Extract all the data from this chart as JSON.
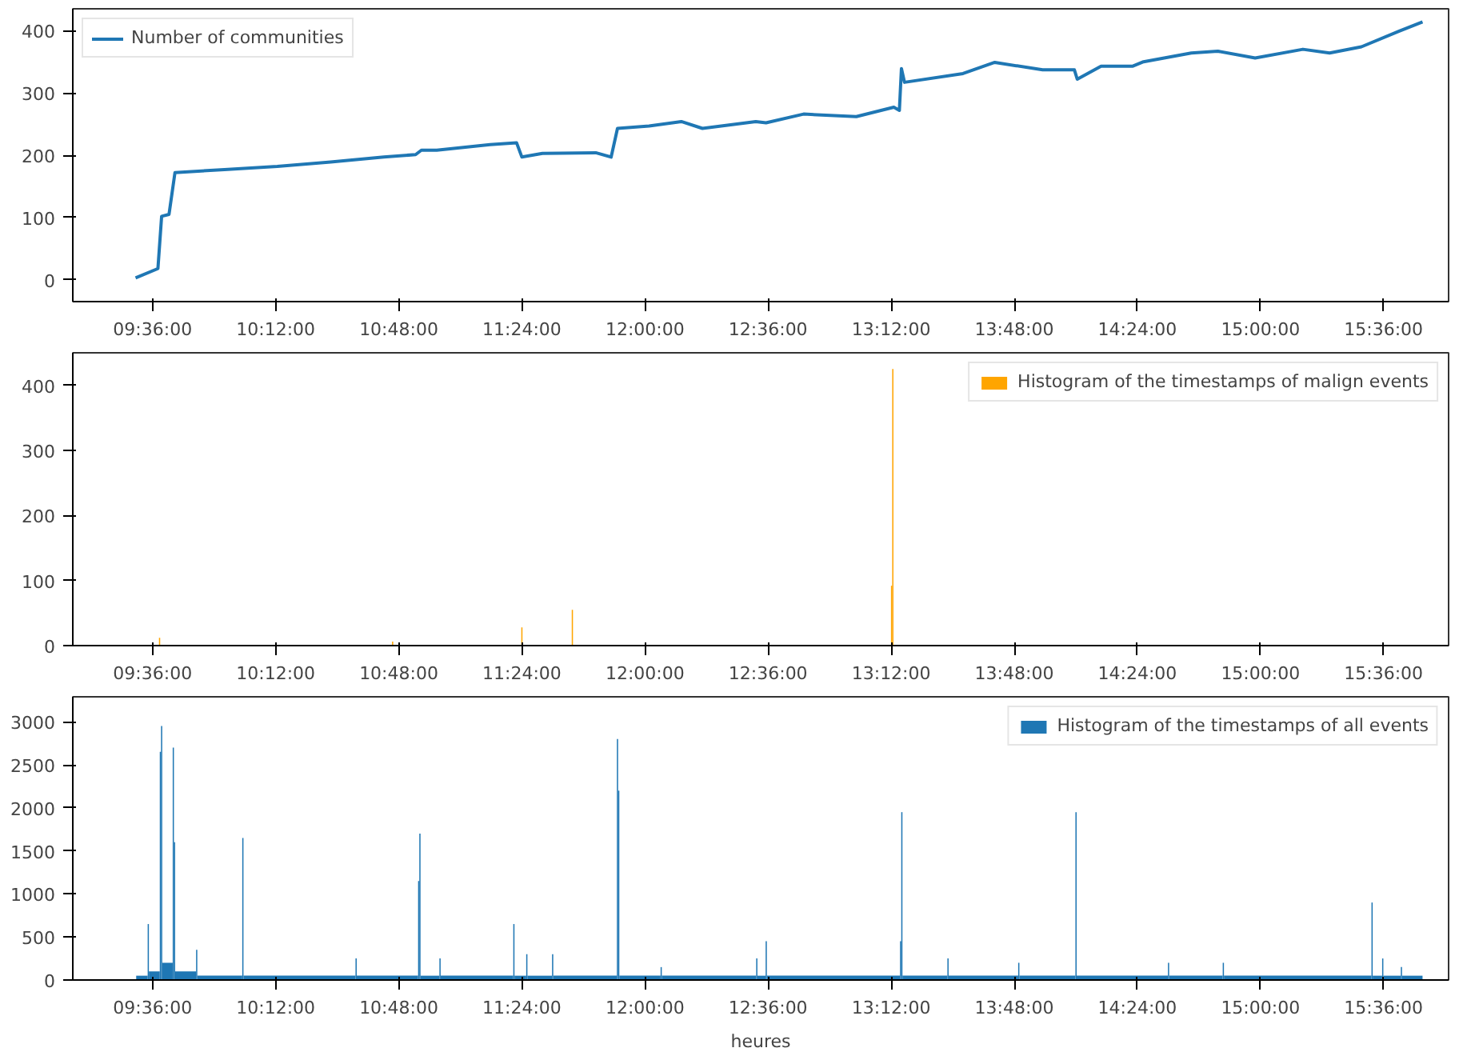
{
  "chart_data": [
    {
      "type": "line",
      "x": [
        9.517,
        9.626,
        9.644,
        9.68,
        9.709,
        9.95,
        10.208,
        10.468,
        10.727,
        10.882,
        10.91,
        10.985,
        11.245,
        11.374,
        11.4,
        11.5,
        11.76,
        11.835,
        11.866,
        12.02,
        12.177,
        12.28,
        12.54,
        12.59,
        12.773,
        13.03,
        13.213,
        13.24,
        13.25,
        13.265,
        13.55,
        13.705,
        13.938,
        14.093,
        14.107,
        14.223,
        14.378,
        14.43,
        14.663,
        14.792,
        14.974,
        15.207,
        15.337,
        15.492,
        15.674,
        15.79
      ],
      "series": [
        {
          "name": "Number of communities",
          "color": "#1f77b4",
          "values": [
            3,
            18,
            102,
            105,
            172,
            177,
            182,
            189,
            197,
            201,
            208,
            208,
            217,
            220,
            197,
            203,
            204,
            197,
            243,
            247,
            254,
            243,
            254,
            252,
            266,
            262,
            277,
            272,
            339,
            317,
            331,
            349,
            337,
            337,
            322,
            343,
            343,
            350,
            364,
            367,
            356,
            370,
            364,
            374,
            399,
            414
          ]
        }
      ],
      "xlim": [
        9.211,
        15.917
      ],
      "ylim": [
        -35,
        435
      ],
      "xticks": [
        {
          "value": 9.6,
          "label": "09:36:00"
        },
        {
          "value": 10.2,
          "label": "10:12:00"
        },
        {
          "value": 10.8,
          "label": "10:48:00"
        },
        {
          "value": 11.4,
          "label": "11:24:00"
        },
        {
          "value": 12.0,
          "label": "12:00:00"
        },
        {
          "value": 12.6,
          "label": "12:36:00"
        },
        {
          "value": 13.2,
          "label": "13:12:00"
        },
        {
          "value": 13.8,
          "label": "13:48:00"
        },
        {
          "value": 14.4,
          "label": "14:24:00"
        },
        {
          "value": 15.0,
          "label": "15:00:00"
        },
        {
          "value": 15.6,
          "label": "15:36:00"
        }
      ],
      "yticks": [
        0,
        100,
        200,
        300,
        400
      ],
      "legend": "top left"
    },
    {
      "type": "histogram",
      "bins": [
        9.631,
        9.637,
        10.767,
        10.773,
        11.397,
        11.403,
        11.643,
        11.649,
        13.199,
        13.205,
        13.211
      ],
      "series": [
        {
          "name": "Histogram of the timestamps of malign events",
          "color": "#ffa500",
          "values": [
            12,
            0,
            6,
            0,
            28,
            0,
            55,
            0,
            92,
            425
          ]
        }
      ],
      "xlim": [
        9.211,
        15.917
      ],
      "ylim": [
        0,
        450
      ],
      "xticks": [
        {
          "value": 9.6,
          "label": "09:36:00"
        },
        {
          "value": 10.2,
          "label": "10:12:00"
        },
        {
          "value": 10.8,
          "label": "10:48:00"
        },
        {
          "value": 11.4,
          "label": "11:24:00"
        },
        {
          "value": 12.0,
          "label": "12:00:00"
        },
        {
          "value": 12.6,
          "label": "12:36:00"
        },
        {
          "value": 13.2,
          "label": "13:12:00"
        },
        {
          "value": 13.8,
          "label": "13:48:00"
        },
        {
          "value": 14.4,
          "label": "14:24:00"
        },
        {
          "value": 15.0,
          "label": "15:00:00"
        },
        {
          "value": 15.6,
          "label": "15:36:00"
        }
      ],
      "yticks": [
        0,
        100,
        200,
        300,
        400
      ],
      "legend": "top right"
    },
    {
      "type": "histogram",
      "xlabel": "heures",
      "bins": [
        9.52,
        9.576,
        9.582,
        9.635,
        9.641,
        9.647,
        9.698,
        9.704,
        9.71,
        9.812,
        9.818,
        10.037,
        10.043,
        10.589,
        10.595,
        10.894,
        10.9,
        10.906,
        10.998,
        11.004,
        11.358,
        11.364,
        11.421,
        11.427,
        11.547,
        11.553,
        11.863,
        11.869,
        11.875,
        12.076,
        12.082,
        12.542,
        12.548,
        12.588,
        12.594,
        13.243,
        13.249,
        13.255,
        13.474,
        13.48,
        13.819,
        13.825,
        14.098,
        14.104,
        14.549,
        14.555,
        14.816,
        14.822,
        15.541,
        15.547,
        15.593,
        15.599,
        15.684,
        15.69,
        15.79
      ],
      "series": [
        {
          "name": "Histogram of the timestamps of all events",
          "color": "#1f77b4",
          "values": [
            50,
            650,
            100,
            2650,
            2950,
            200,
            2700,
            1600,
            100,
            350,
            50,
            1650,
            50,
            250,
            50,
            1150,
            1700,
            50,
            250,
            50,
            650,
            50,
            300,
            50,
            300,
            50,
            2800,
            2200,
            50,
            150,
            50,
            250,
            50,
            450,
            50,
            450,
            1950,
            50,
            250,
            50,
            200,
            50,
            1950,
            50,
            200,
            50,
            200,
            50,
            900,
            50,
            250,
            50,
            150,
            50
          ]
        }
      ],
      "xlim": [
        9.211,
        15.917
      ],
      "ylim": [
        0,
        3290
      ],
      "xticks": [
        {
          "value": 9.6,
          "label": "09:36:00"
        },
        {
          "value": 10.2,
          "label": "10:12:00"
        },
        {
          "value": 10.8,
          "label": "10:48:00"
        },
        {
          "value": 11.4,
          "label": "11:24:00"
        },
        {
          "value": 12.0,
          "label": "12:00:00"
        },
        {
          "value": 12.6,
          "label": "12:36:00"
        },
        {
          "value": 13.2,
          "label": "13:12:00"
        },
        {
          "value": 13.8,
          "label": "13:48:00"
        },
        {
          "value": 14.4,
          "label": "14:24:00"
        },
        {
          "value": 15.0,
          "label": "15:00:00"
        },
        {
          "value": 15.6,
          "label": "15:36:00"
        }
      ],
      "yticks": [
        0,
        500,
        1000,
        1500,
        2000,
        2500,
        3000
      ],
      "legend": "top right"
    }
  ]
}
